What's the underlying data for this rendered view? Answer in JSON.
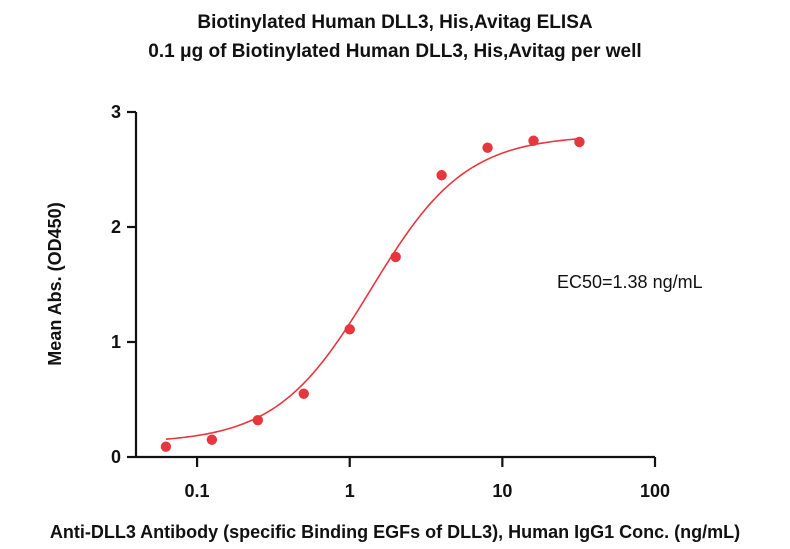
{
  "chart_data": {
    "type": "scatter",
    "title": "Biotinylated Human DLL3, His,Avitag ELISA",
    "subtitle": "0.1 μg of Biotinylated Human DLL3, His,Avitag per well",
    "xlabel": "Anti-DLL3 Antibody (specific Binding EGFs of DLL3), Human IgG1 Conc. (ng/mL)",
    "ylabel": "Mean Abs. (OD450)",
    "x_scale": "log",
    "xlim": [
      0.0398,
      100
    ],
    "ylim": [
      0,
      3
    ],
    "x_ticks": [
      0.1,
      1,
      10,
      100
    ],
    "x_tick_labels": [
      "0.1",
      "1",
      "10",
      "100"
    ],
    "y_ticks": [
      0,
      1,
      2,
      3
    ],
    "y_tick_labels": [
      "0",
      "1",
      "2",
      "3"
    ],
    "grid": false,
    "series": [
      {
        "name": "Anti-DLL3 Antibody",
        "color": "#e8363f",
        "x": [
          0.0625,
          0.125,
          0.25,
          0.5,
          1,
          2,
          4,
          8,
          16,
          32
        ],
        "y": [
          0.09,
          0.15,
          0.32,
          0.55,
          1.11,
          1.74,
          2.45,
          2.69,
          2.75,
          2.74
        ]
      }
    ],
    "fit": {
      "model": "4PL",
      "bottom": 0.12,
      "top": 2.8,
      "ec50": 1.38,
      "hill": 1.4,
      "color": "#e8363f"
    },
    "annotations": [
      {
        "text": "EC50=1.38 ng/mL"
      }
    ]
  }
}
